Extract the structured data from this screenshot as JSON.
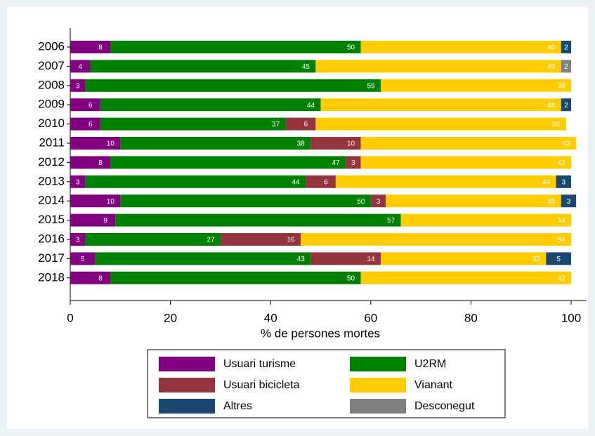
{
  "chart_data": {
    "type": "stacked_bar_horizontal",
    "x_label": "% de persones mortes",
    "categories": [
      "2006",
      "2007",
      "2008",
      "2009",
      "2010",
      "2011",
      "2012",
      "2013",
      "2014",
      "2015",
      "2016",
      "2017",
      "2018"
    ],
    "series": [
      {
        "name": "Usuari turisme",
        "color": "#800080",
        "values": [
          8,
          4,
          3,
          6,
          6,
          10,
          8,
          3,
          10,
          9,
          3,
          5,
          8
        ]
      },
      {
        "name": "U2RM",
        "color": "#008000",
        "values": [
          50,
          45,
          59,
          44,
          37,
          38,
          47,
          44,
          50,
          57,
          27,
          43,
          50
        ]
      },
      {
        "name": "Usuari bicicleta",
        "color": "#93343f",
        "values": [
          null,
          null,
          null,
          null,
          6,
          10,
          3,
          6,
          3,
          null,
          16,
          14,
          null
        ]
      },
      {
        "name": "Vianant",
        "color": "#ffcc00",
        "values": [
          40,
          49,
          38,
          48,
          50,
          43,
          42,
          44,
          35,
          34,
          54,
          33,
          42
        ]
      },
      {
        "name": "Altres",
        "color": "#1a476f",
        "values": [
          2,
          null,
          null,
          2,
          null,
          null,
          null,
          3,
          3,
          null,
          null,
          5,
          null
        ]
      },
      {
        "name": "Desconegut",
        "color": "#808080",
        "values": [
          null,
          2,
          null,
          null,
          null,
          null,
          null,
          null,
          null,
          null,
          null,
          null,
          null
        ]
      }
    ],
    "xlim": [
      0,
      100
    ],
    "xticks": [
      0,
      20,
      40,
      60,
      80,
      100
    ],
    "grid": false
  }
}
